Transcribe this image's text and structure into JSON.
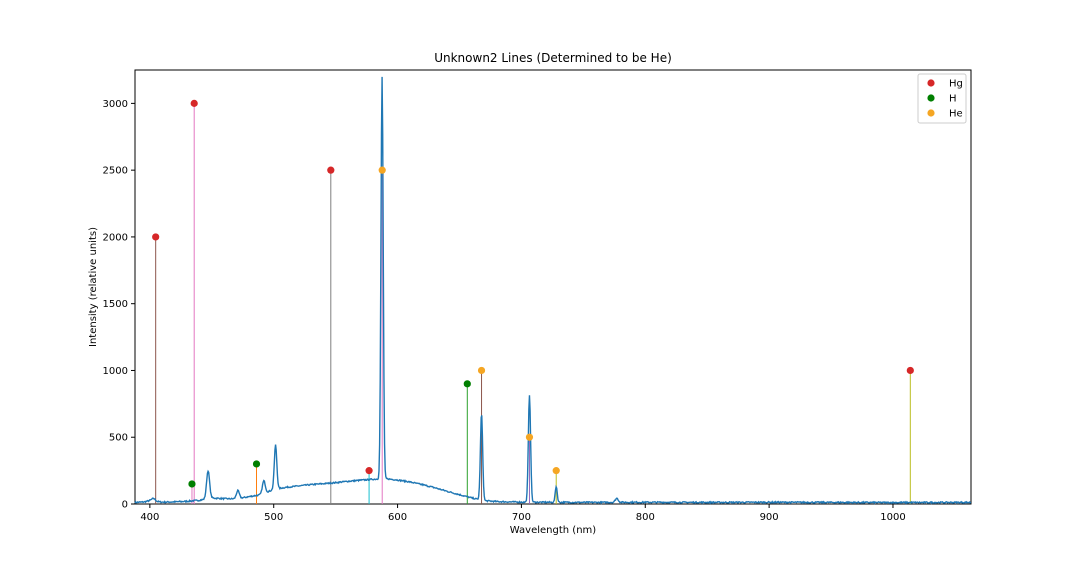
{
  "chart_data": {
    "type": "line",
    "title": "Unknown2 Lines (Determined to be He)",
    "xlabel": "Wavelength (nm)",
    "ylabel": "Intensity (relative units)",
    "xlim": [
      388,
      1063
    ],
    "ylim": [
      0,
      3250
    ],
    "xticks": [
      400,
      500,
      600,
      700,
      800,
      900,
      1000
    ],
    "yticks": [
      0,
      500,
      1000,
      1500,
      2000,
      2500,
      3000
    ],
    "grid": false,
    "legend_position": "top-right",
    "spectrum": {
      "color": "#1f77b4",
      "baseline": [
        [
          388,
          12
        ],
        [
          395,
          15
        ],
        [
          400,
          25
        ],
        [
          405,
          18
        ],
        [
          410,
          14
        ],
        [
          420,
          16
        ],
        [
          430,
          20
        ],
        [
          440,
          28
        ],
        [
          450,
          45
        ],
        [
          460,
          40
        ],
        [
          470,
          38
        ],
        [
          480,
          55
        ],
        [
          490,
          70
        ],
        [
          500,
          110
        ],
        [
          510,
          125
        ],
        [
          520,
          135
        ],
        [
          530,
          145
        ],
        [
          540,
          152
        ],
        [
          550,
          160
        ],
        [
          560,
          170
        ],
        [
          570,
          178
        ],
        [
          580,
          185
        ],
        [
          590,
          190
        ],
        [
          600,
          180
        ],
        [
          610,
          165
        ],
        [
          620,
          145
        ],
        [
          630,
          122
        ],
        [
          640,
          95
        ],
        [
          650,
          70
        ],
        [
          660,
          45
        ],
        [
          670,
          25
        ],
        [
          680,
          18
        ],
        [
          700,
          14
        ],
        [
          750,
          12
        ],
        [
          800,
          13
        ],
        [
          850,
          12
        ],
        [
          900,
          13
        ],
        [
          950,
          12
        ],
        [
          1000,
          11
        ],
        [
          1063,
          12
        ]
      ],
      "peaks": [
        {
          "x": 403,
          "y": 20,
          "w": 1.5
        },
        {
          "x": 447,
          "y": 210,
          "w": 1.2
        },
        {
          "x": 471,
          "y": 60,
          "w": 1.2
        },
        {
          "x": 492,
          "y": 95,
          "w": 1.2
        },
        {
          "x": 501.5,
          "y": 330,
          "w": 1.0
        },
        {
          "x": 587.5,
          "y": 3010,
          "w": 0.9
        },
        {
          "x": 667.8,
          "y": 650,
          "w": 0.9
        },
        {
          "x": 706.5,
          "y": 805,
          "w": 0.9
        },
        {
          "x": 728.1,
          "y": 120,
          "w": 0.8
        },
        {
          "x": 777,
          "y": 30,
          "w": 1.2
        }
      ]
    },
    "series": [
      {
        "name": "Hg",
        "color": "#d62728",
        "points": [
          {
            "x": 404.7,
            "y": 2000,
            "stem": "#8c564b"
          },
          {
            "x": 435.8,
            "y": 3000,
            "stem": "#e377c2"
          },
          {
            "x": 546.1,
            "y": 2500,
            "stem": "#7f7f7f"
          },
          {
            "x": 577.0,
            "y": 250,
            "stem": "#17becf"
          },
          {
            "x": 1014.0,
            "y": 1000,
            "stem": "#bcbd22"
          }
        ]
      },
      {
        "name": "H",
        "color": "#007f00",
        "points": [
          {
            "x": 434.0,
            "y": 150,
            "stem": "#e377c2"
          },
          {
            "x": 486.1,
            "y": 300,
            "stem": "#ff7f0e"
          },
          {
            "x": 656.3,
            "y": 900,
            "stem": "#2ca02c"
          }
        ]
      },
      {
        "name": "He",
        "color": "#f5a623",
        "points": [
          {
            "x": 587.6,
            "y": 2500,
            "stem": "#e377c2"
          },
          {
            "x": 667.8,
            "y": 1000,
            "stem": "#8c564b"
          },
          {
            "x": 706.5,
            "y": 500,
            "stem": "#9467bd"
          },
          {
            "x": 728.1,
            "y": 250,
            "stem": "#bcbd22"
          }
        ]
      }
    ]
  }
}
